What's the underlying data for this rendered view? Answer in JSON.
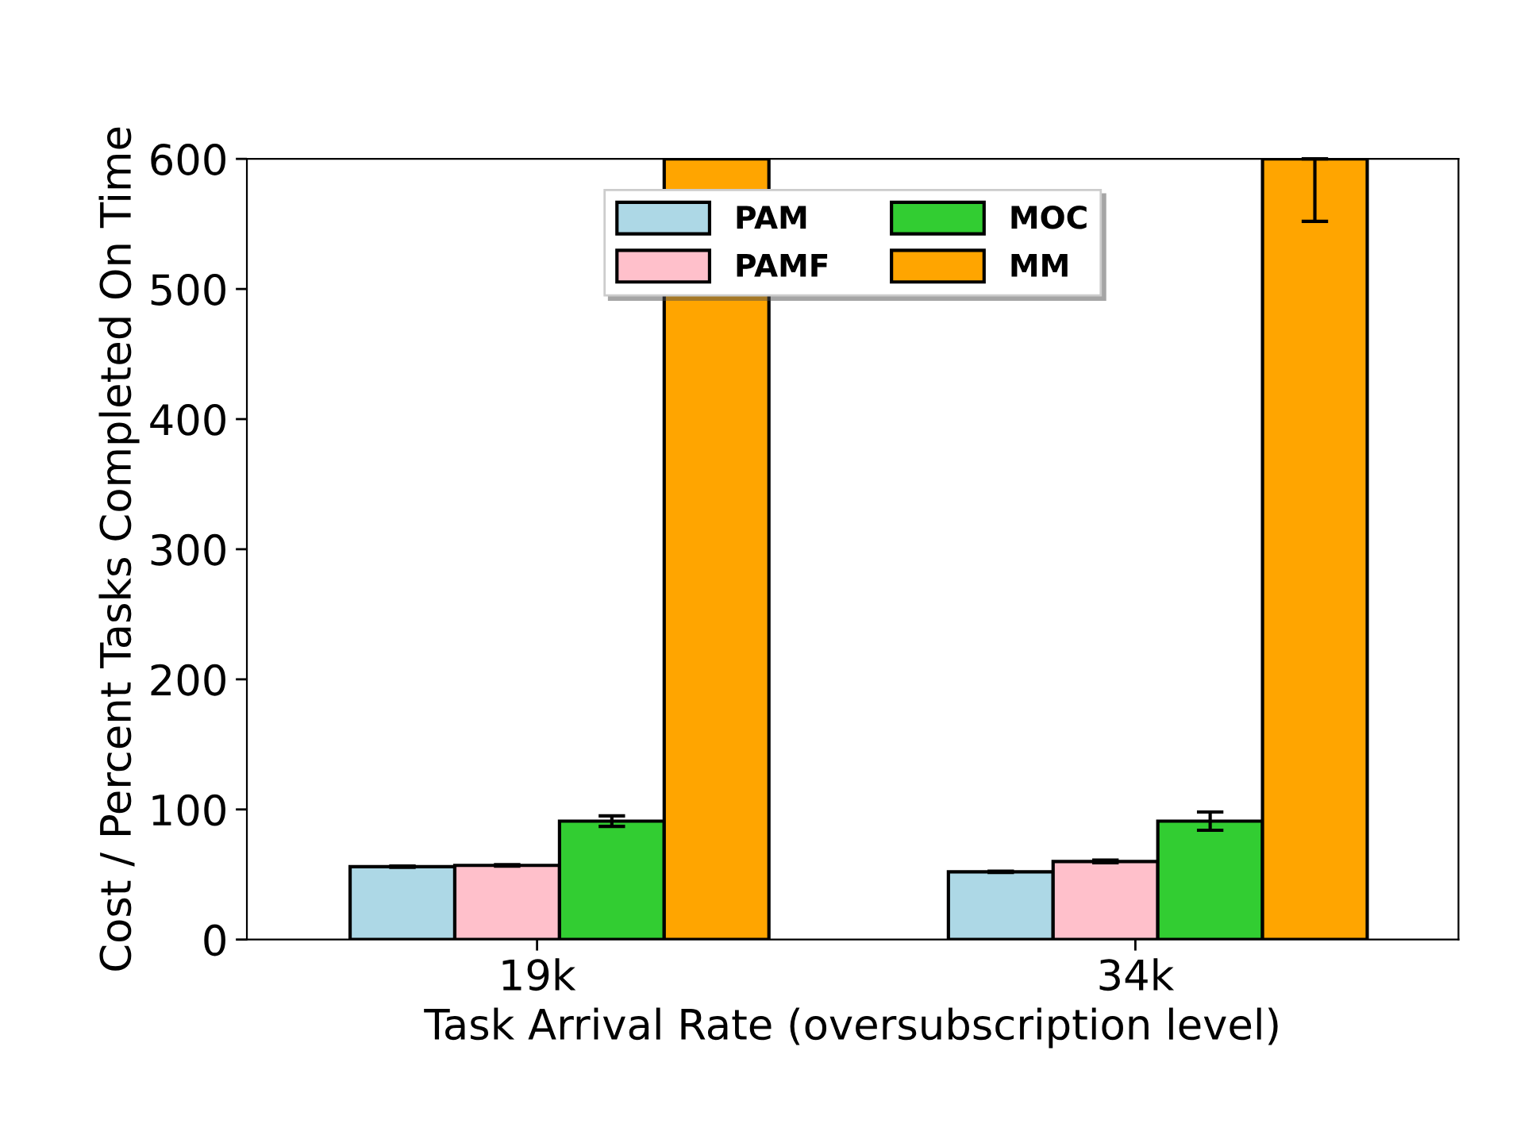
{
  "chart_data": {
    "type": "bar",
    "xlabel": "Task Arrival Rate (oversubscription level)",
    "ylabel": "Cost / Percent Tasks Completed On Time",
    "categories": [
      "19k",
      "34k"
    ],
    "series": [
      {
        "name": "PAM",
        "color": "#add8e6",
        "values": [
          56,
          52
        ],
        "errors": [
          0.5,
          0.5
        ]
      },
      {
        "name": "PAMF",
        "color": "#ffc0cb",
        "values": [
          57,
          60
        ],
        "errors": [
          0.5,
          1
        ]
      },
      {
        "name": "MOC",
        "color": "#32cd32",
        "values": [
          91,
          91
        ],
        "errors": [
          4,
          7
        ]
      },
      {
        "name": "MM",
        "color": "#ffa500",
        "values": [
          600,
          600
        ],
        "errors": [
          null,
          [
            552,
            600
          ]
        ]
      }
    ],
    "ylim": [
      0,
      600
    ],
    "yticks": [
      0,
      100,
      200,
      300,
      400,
      500,
      600
    ],
    "grid": false,
    "legend": "top"
  }
}
